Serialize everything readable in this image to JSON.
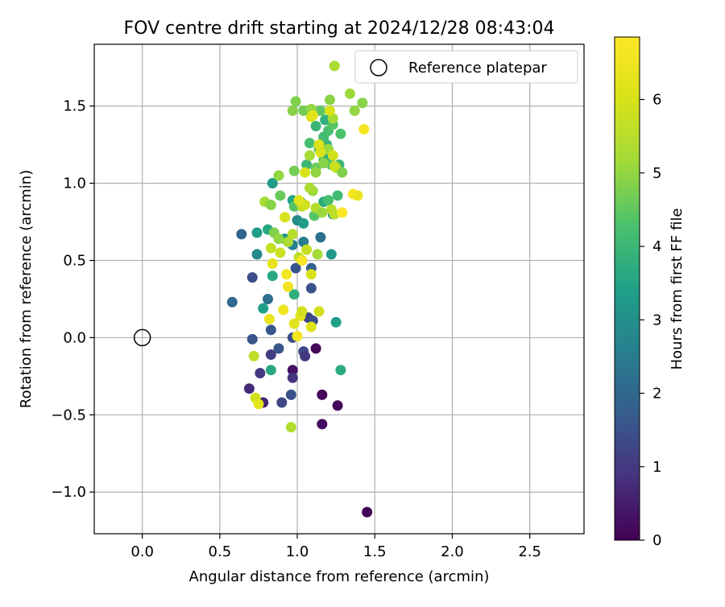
{
  "chart_data": {
    "type": "scatter",
    "title": "FOV centre drift starting at 2024/12/28 08:43:04",
    "xlabel": "Angular distance from reference (arcmin)",
    "ylabel": "Rotation from reference (arcmin)",
    "xlim": [
      -0.31,
      2.85
    ],
    "ylim": [
      -1.27,
      1.9
    ],
    "xticks": [
      0.0,
      0.5,
      1.0,
      1.5,
      2.0,
      2.5
    ],
    "xtick_labels": [
      "0.0",
      "0.5",
      "1.0",
      "1.5",
      "2.0",
      "2.5"
    ],
    "yticks": [
      -1.0,
      -0.5,
      0.0,
      0.5,
      1.0,
      1.5
    ],
    "ytick_labels": [
      "−1.0",
      "−0.5",
      "0.0",
      "0.5",
      "1.0",
      "1.5"
    ],
    "grid": true,
    "legend": {
      "placement": "top-right",
      "entries": [
        "Reference platepar"
      ]
    },
    "reference_point": {
      "x": 0.0,
      "y": 0.0
    },
    "colorbar": {
      "label": "Hours from first FF file",
      "range": [
        0,
        6.85
      ],
      "ticks": [
        0,
        1,
        2,
        3,
        4,
        5,
        6
      ],
      "tick_labels": [
        "0",
        "1",
        "2",
        "3",
        "4",
        "5",
        "6"
      ],
      "colormap": "viridis"
    },
    "points": [
      {
        "x": 1.45,
        "y": -1.13,
        "c": 0.05
      },
      {
        "x": 1.26,
        "y": -0.44,
        "c": 0.1
      },
      {
        "x": 1.16,
        "y": -0.56,
        "c": 0.2
      },
      {
        "x": 1.16,
        "y": -0.37,
        "c": 0.1
      },
      {
        "x": 1.12,
        "y": -0.07,
        "c": 0.15
      },
      {
        "x": 0.97,
        "y": -0.21,
        "c": 0.3
      },
      {
        "x": 0.97,
        "y": -0.26,
        "c": 0.9
      },
      {
        "x": 0.69,
        "y": -0.33,
        "c": 0.7
      },
      {
        "x": 0.9,
        "y": -0.42,
        "c": 1.3
      },
      {
        "x": 0.96,
        "y": -0.37,
        "c": 1.5
      },
      {
        "x": 0.78,
        "y": -0.42,
        "c": 0.6
      },
      {
        "x": 0.76,
        "y": -0.23,
        "c": 1.0
      },
      {
        "x": 0.83,
        "y": -0.11,
        "c": 1.1
      },
      {
        "x": 0.88,
        "y": -0.07,
        "c": 1.6
      },
      {
        "x": 1.04,
        "y": -0.09,
        "c": 1.3
      },
      {
        "x": 1.05,
        "y": -0.12,
        "c": 1.0
      },
      {
        "x": 0.71,
        "y": -0.01,
        "c": 1.6
      },
      {
        "x": 0.83,
        "y": 0.05,
        "c": 1.6
      },
      {
        "x": 0.97,
        "y": 0.0,
        "c": 1.4
      },
      {
        "x": 1.07,
        "y": 0.13,
        "c": 1.2
      },
      {
        "x": 1.1,
        "y": 0.11,
        "c": 1.4
      },
      {
        "x": 0.58,
        "y": 0.23,
        "c": 2.0
      },
      {
        "x": 0.71,
        "y": 0.39,
        "c": 1.4
      },
      {
        "x": 0.64,
        "y": 0.67,
        "c": 1.9
      },
      {
        "x": 0.81,
        "y": 0.25,
        "c": 2.2
      },
      {
        "x": 0.78,
        "y": 0.19,
        "c": 3.4
      },
      {
        "x": 1.09,
        "y": 0.32,
        "c": 1.5
      },
      {
        "x": 1.09,
        "y": 0.45,
        "c": 1.8
      },
      {
        "x": 0.99,
        "y": 0.45,
        "c": 1.6
      },
      {
        "x": 1.03,
        "y": 0.5,
        "c": 2.0
      },
      {
        "x": 1.15,
        "y": 0.65,
        "c": 2.2
      },
      {
        "x": 1.04,
        "y": 0.62,
        "c": 2.5
      },
      {
        "x": 0.84,
        "y": 0.4,
        "c": 3.6
      },
      {
        "x": 0.74,
        "y": 0.54,
        "c": 2.8
      },
      {
        "x": 0.74,
        "y": 0.68,
        "c": 3.3
      },
      {
        "x": 0.81,
        "y": 0.7,
        "c": 3.6
      },
      {
        "x": 0.92,
        "y": 0.64,
        "c": 3.1
      },
      {
        "x": 0.97,
        "y": 0.6,
        "c": 2.6
      },
      {
        "x": 1.22,
        "y": 0.54,
        "c": 3.2
      },
      {
        "x": 1.25,
        "y": 0.1,
        "c": 3.4
      },
      {
        "x": 1.28,
        "y": -0.21,
        "c": 3.7
      },
      {
        "x": 0.83,
        "y": -0.21,
        "c": 3.6
      },
      {
        "x": 0.98,
        "y": 0.28,
        "c": 3.8
      },
      {
        "x": 1.0,
        "y": 0.76,
        "c": 2.9
      },
      {
        "x": 1.04,
        "y": 0.74,
        "c": 3.3
      },
      {
        "x": 0.97,
        "y": 0.89,
        "c": 3.5
      },
      {
        "x": 1.02,
        "y": 0.88,
        "c": 3.4
      },
      {
        "x": 0.84,
        "y": 1.0,
        "c": 3.3
      },
      {
        "x": 1.17,
        "y": 0.88,
        "c": 3.7
      },
      {
        "x": 1.2,
        "y": 0.89,
        "c": 4.2
      },
      {
        "x": 1.26,
        "y": 0.92,
        "c": 4.1
      },
      {
        "x": 1.23,
        "y": 0.8,
        "c": 3.2
      },
      {
        "x": 1.11,
        "y": 0.79,
        "c": 4.4
      },
      {
        "x": 1.06,
        "y": 1.12,
        "c": 4.0
      },
      {
        "x": 1.12,
        "y": 1.1,
        "c": 4.6
      },
      {
        "x": 1.17,
        "y": 1.15,
        "c": 4.3
      },
      {
        "x": 1.2,
        "y": 1.18,
        "c": 3.8
      },
      {
        "x": 1.22,
        "y": 1.12,
        "c": 4.2
      },
      {
        "x": 1.27,
        "y": 1.12,
        "c": 4.0
      },
      {
        "x": 1.08,
        "y": 1.26,
        "c": 4.2
      },
      {
        "x": 1.14,
        "y": 1.22,
        "c": 4.4
      },
      {
        "x": 1.19,
        "y": 1.25,
        "c": 3.9
      },
      {
        "x": 1.12,
        "y": 1.37,
        "c": 4.0
      },
      {
        "x": 1.17,
        "y": 1.3,
        "c": 4.1
      },
      {
        "x": 1.2,
        "y": 1.34,
        "c": 4.2
      },
      {
        "x": 1.28,
        "y": 1.32,
        "c": 4.3
      },
      {
        "x": 1.18,
        "y": 1.41,
        "c": 3.8
      },
      {
        "x": 1.23,
        "y": 1.38,
        "c": 4.4
      },
      {
        "x": 1.1,
        "y": 1.45,
        "c": 4.6
      },
      {
        "x": 1.15,
        "y": 1.47,
        "c": 4.5
      },
      {
        "x": 1.04,
        "y": 1.47,
        "c": 4.7
      },
      {
        "x": 0.97,
        "y": 1.47,
        "c": 4.9
      },
      {
        "x": 0.99,
        "y": 1.53,
        "c": 4.8
      },
      {
        "x": 1.09,
        "y": 1.48,
        "c": 5.0
      },
      {
        "x": 1.21,
        "y": 1.54,
        "c": 4.9
      },
      {
        "x": 1.34,
        "y": 1.58,
        "c": 5.1
      },
      {
        "x": 1.42,
        "y": 1.52,
        "c": 4.9
      },
      {
        "x": 1.37,
        "y": 1.47,
        "c": 5.0
      },
      {
        "x": 1.23,
        "y": 1.42,
        "c": 5.2
      },
      {
        "x": 1.2,
        "y": 1.22,
        "c": 5.1
      },
      {
        "x": 1.25,
        "y": 1.1,
        "c": 5.4
      },
      {
        "x": 1.29,
        "y": 1.07,
        "c": 4.8
      },
      {
        "x": 1.12,
        "y": 1.07,
        "c": 5.0
      },
      {
        "x": 1.17,
        "y": 1.13,
        "c": 4.9
      },
      {
        "x": 1.08,
        "y": 1.18,
        "c": 5.2
      },
      {
        "x": 1.1,
        "y": 0.95,
        "c": 5.1
      },
      {
        "x": 1.08,
        "y": 0.97,
        "c": 5.3
      },
      {
        "x": 0.98,
        "y": 1.08,
        "c": 4.7
      },
      {
        "x": 0.88,
        "y": 1.05,
        "c": 5.0
      },
      {
        "x": 0.89,
        "y": 0.92,
        "c": 4.6
      },
      {
        "x": 0.79,
        "y": 0.88,
        "c": 5.2
      },
      {
        "x": 0.83,
        "y": 0.86,
        "c": 4.9
      },
      {
        "x": 0.98,
        "y": 0.85,
        "c": 4.4
      },
      {
        "x": 1.03,
        "y": 0.85,
        "c": 5.6
      },
      {
        "x": 1.05,
        "y": 0.86,
        "c": 5.9
      },
      {
        "x": 1.12,
        "y": 0.84,
        "c": 5.4
      },
      {
        "x": 1.16,
        "y": 0.81,
        "c": 5.1
      },
      {
        "x": 1.22,
        "y": 0.83,
        "c": 5.5
      },
      {
        "x": 1.24,
        "y": 0.8,
        "c": 5.6
      },
      {
        "x": 0.85,
        "y": 0.68,
        "c": 4.8
      },
      {
        "x": 0.88,
        "y": 0.64,
        "c": 5.0
      },
      {
        "x": 0.94,
        "y": 0.62,
        "c": 5.3
      },
      {
        "x": 0.97,
        "y": 0.67,
        "c": 5.5
      },
      {
        "x": 0.83,
        "y": 0.58,
        "c": 5.7
      },
      {
        "x": 0.89,
        "y": 0.55,
        "c": 5.8
      },
      {
        "x": 1.01,
        "y": 0.52,
        "c": 5.6
      },
      {
        "x": 1.06,
        "y": 0.57,
        "c": 5.7
      },
      {
        "x": 1.13,
        "y": 0.54,
        "c": 5.2
      },
      {
        "x": 0.84,
        "y": 0.48,
        "c": 6.3
      },
      {
        "x": 0.92,
        "y": 0.78,
        "c": 6.0
      },
      {
        "x": 0.93,
        "y": 0.41,
        "c": 6.6
      },
      {
        "x": 0.94,
        "y": 0.33,
        "c": 6.5
      },
      {
        "x": 1.03,
        "y": 0.5,
        "c": 6.7
      },
      {
        "x": 1.09,
        "y": 0.41,
        "c": 6.0
      },
      {
        "x": 0.91,
        "y": 0.18,
        "c": 6.5
      },
      {
        "x": 0.82,
        "y": 0.12,
        "c": 6.4
      },
      {
        "x": 0.98,
        "y": 0.09,
        "c": 6.2
      },
      {
        "x": 1.02,
        "y": 0.14,
        "c": 6.3
      },
      {
        "x": 1.03,
        "y": 0.17,
        "c": 5.9
      },
      {
        "x": 1.0,
        "y": 0.01,
        "c": 6.6
      },
      {
        "x": 1.09,
        "y": 0.07,
        "c": 6.1
      },
      {
        "x": 1.14,
        "y": 0.17,
        "c": 5.9
      },
      {
        "x": 0.72,
        "y": -0.12,
        "c": 5.6
      },
      {
        "x": 0.73,
        "y": -0.39,
        "c": 5.9
      },
      {
        "x": 0.75,
        "y": -0.43,
        "c": 6.3
      },
      {
        "x": 0.96,
        "y": -0.58,
        "c": 5.4
      },
      {
        "x": 1.09,
        "y": 1.43,
        "c": 6.0
      },
      {
        "x": 1.14,
        "y": 1.25,
        "c": 6.1
      },
      {
        "x": 1.15,
        "y": 1.2,
        "c": 6.0
      },
      {
        "x": 1.23,
        "y": 1.18,
        "c": 5.9
      },
      {
        "x": 1.24,
        "y": 1.11,
        "c": 5.8
      },
      {
        "x": 1.36,
        "y": 0.93,
        "c": 6.7
      },
      {
        "x": 1.39,
        "y": 0.92,
        "c": 6.4
      },
      {
        "x": 1.29,
        "y": 0.81,
        "c": 6.8
      },
      {
        "x": 1.01,
        "y": 0.89,
        "c": 6.2
      },
      {
        "x": 1.05,
        "y": 1.07,
        "c": 6.0
      },
      {
        "x": 1.43,
        "y": 1.35,
        "c": 6.6
      },
      {
        "x": 1.1,
        "y": 1.44,
        "c": 6.2
      },
      {
        "x": 1.21,
        "y": 1.47,
        "c": 6.0
      },
      {
        "x": 1.24,
        "y": 1.76,
        "c": 5.3
      }
    ]
  }
}
